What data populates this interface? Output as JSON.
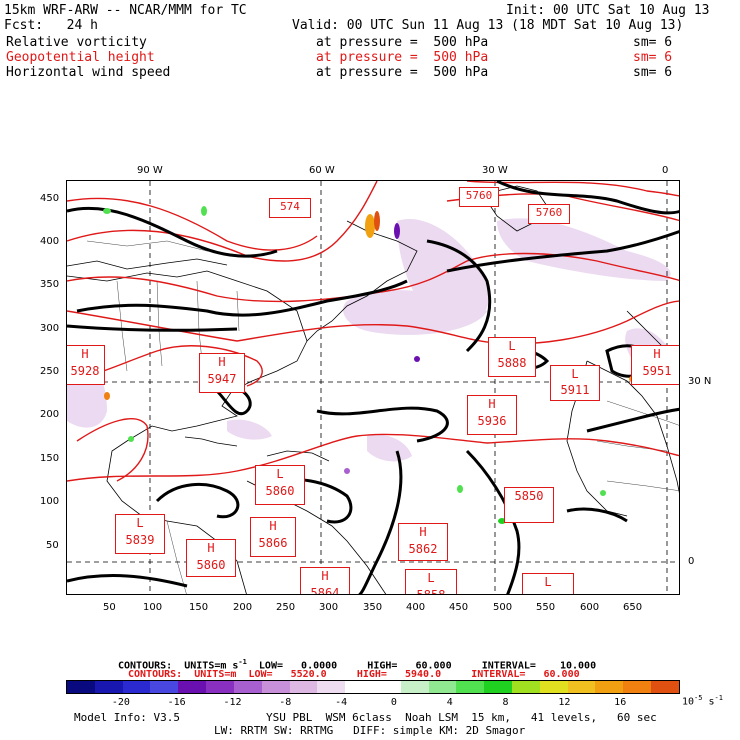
{
  "header": {
    "line1_left": "15km WRF-ARW -- NCAR/MMM for TC",
    "line1_right": "Init: 00 UTC Sat 10 Aug 13",
    "line2_left": "Fcst:   24 h",
    "line2_right": "Valid: 00 UTC Sun 11 Aug 13 (18 MDT Sat 10 Aug 13)",
    "fields": [
      {
        "name": "Relative vorticity",
        "level": "at pressure =  500 hPa",
        "sm": "sm= 6",
        "color": "#000000"
      },
      {
        "name": "Geopotential height",
        "level": "at pressure =  500 hPa",
        "sm": "sm= 6",
        "color": "#e01818"
      },
      {
        "name": "Horizontal wind speed",
        "level": "at pressure =  500 hPa",
        "sm": "sm= 6",
        "color": "#000000"
      }
    ]
  },
  "map": {
    "lon_labels": [
      "90 W",
      "60 W",
      "30 W",
      "0"
    ],
    "lat_labels": [
      "30 N",
      "0"
    ],
    "y_ticks": [
      "450",
      "400",
      "350",
      "300",
      "250",
      "200",
      "150",
      "100",
      "50"
    ],
    "x_ticks": [
      "50",
      "100",
      "150",
      "200",
      "250",
      "300",
      "350",
      "400",
      "450",
      "500",
      "550",
      "600",
      "650"
    ],
    "height_labels": [
      {
        "letter": "",
        "value": "5760"
      },
      {
        "letter": "",
        "value": "5760"
      },
      {
        "letter": "",
        "value": "574"
      },
      {
        "letter": "H",
        "value": "5928"
      },
      {
        "letter": "H",
        "value": "5947"
      },
      {
        "letter": "L",
        "value": "5888"
      },
      {
        "letter": "H",
        "value": "5936"
      },
      {
        "letter": "L",
        "value": "5911"
      },
      {
        "letter": "H",
        "value": "5951"
      },
      {
        "letter": "L",
        "value": "5860"
      },
      {
        "letter": "",
        "value": "5850"
      },
      {
        "letter": "L",
        "value": "5839"
      },
      {
        "letter": "H",
        "value": "5866"
      },
      {
        "letter": "H",
        "value": "5862"
      },
      {
        "letter": "H",
        "value": "5860"
      },
      {
        "letter": "H",
        "value": "5864"
      },
      {
        "letter": "L",
        "value": "5858"
      },
      {
        "letter": "L",
        "value": "5861"
      }
    ]
  },
  "contours": {
    "black": {
      "label": "CONTOURS:",
      "units": "UNITS=m s",
      "units_sup": "-1",
      "low": "LOW=   0.0000",
      "high": "HIGH=   60.000",
      "interval": "INTERVAL=    10.000"
    },
    "red": {
      "label": "CONTOURS:",
      "units": "UNITS=m",
      "low": "LOW=   5520.0",
      "high": "HIGH=   5940.0",
      "interval": "INTERVAL=   60.000"
    }
  },
  "colorbar": {
    "colors": [
      "#0a0a80",
      "#1818b0",
      "#2a2ad0",
      "#4848e0",
      "#6a10b0",
      "#8a30c0",
      "#a860d0",
      "#c890d8",
      "#ddb8e2",
      "#eeddf0",
      "#ffffff",
      "#ffffff",
      "#c8f0c8",
      "#90e890",
      "#50e050",
      "#20d020",
      "#a0e020",
      "#e0e020",
      "#f0c020",
      "#f0a010",
      "#f08010",
      "#e05010"
    ],
    "tick_labels": [
      "-20",
      "-16",
      "-12",
      "-8",
      "-4",
      "0",
      "4",
      "8",
      "12",
      "16"
    ],
    "units": "10",
    "units_sup": "-5",
    "units_suffix": " s",
    "units_sup2": "-1"
  },
  "footer": {
    "model": "Model Info: V3.5",
    "line1": "YSU PBL  WSM 6class  Noah LSM  15 km,   41 levels,   60 sec",
    "line2": "LW: RRTM SW: RRTMG   DIFF: simple KM: 2D Smagor"
  }
}
